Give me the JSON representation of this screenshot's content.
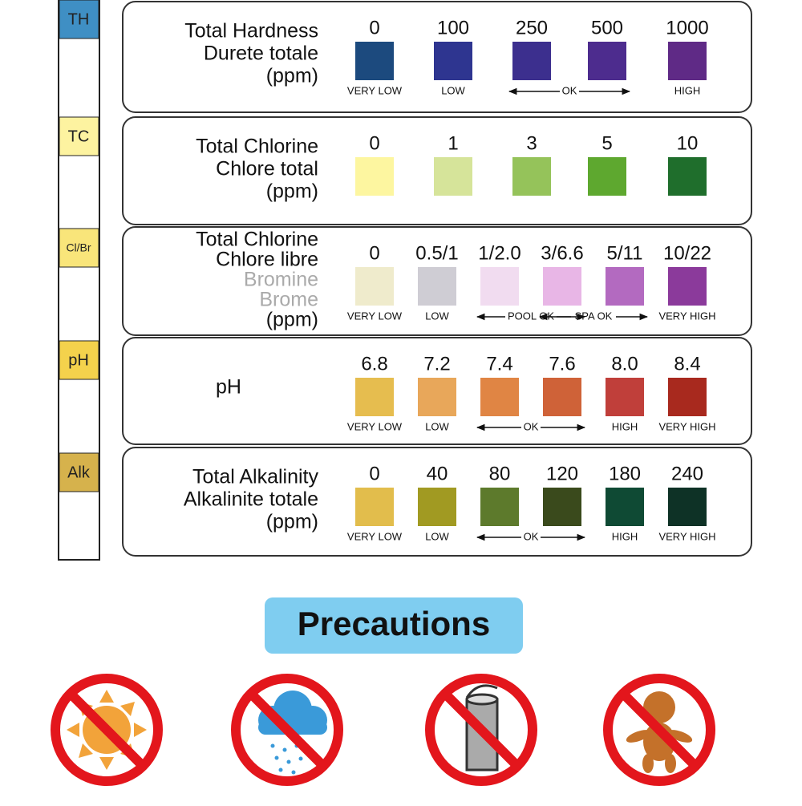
{
  "strip": {
    "labels": [
      {
        "text": "TH",
        "color": "#3f8fc4"
      },
      {
        "text": "TC",
        "color": "#fdf3a0"
      },
      {
        "text": "Cl/Br",
        "color": "#f9e57a"
      },
      {
        "text": "pH",
        "color": "#f4d24c"
      },
      {
        "text": "Alk",
        "color": "#d6b24c"
      }
    ]
  },
  "rows": [
    {
      "label_lines": [
        {
          "text": "Total Hardness"
        },
        {
          "text": "Durete totale"
        },
        {
          "text": "(ppm)"
        }
      ],
      "swatches": [
        {
          "value": "0",
          "color": "#1c4a7e",
          "status": "VERY LOW"
        },
        {
          "value": "100",
          "color": "#2e3590",
          "status": "LOW"
        },
        {
          "value": "250",
          "color": "#3c2f8e"
        },
        {
          "value": "500",
          "color": "#4d2c8e"
        },
        {
          "value": "1000",
          "color": "#5f2a86",
          "status": "HIGH"
        }
      ],
      "ranges": [
        {
          "text": "OK",
          "first": 2,
          "last": 3
        }
      ]
    },
    {
      "label_lines": [
        {
          "text": "Total Chlorine"
        },
        {
          "text": "Chlore total"
        },
        {
          "text": "(ppm)"
        }
      ],
      "swatches": [
        {
          "value": "0",
          "color": "#fdf6a0"
        },
        {
          "value": "1",
          "color": "#d6e49a"
        },
        {
          "value": "3",
          "color": "#95c35a"
        },
        {
          "value": "5",
          "color": "#5ea82f"
        },
        {
          "value": "10",
          "color": "#1f6e2c"
        }
      ],
      "ranges": []
    },
    {
      "label_lines": [
        {
          "text": "Total Chlorine"
        },
        {
          "text": "Chlore libre"
        },
        {
          "text": "Bromine",
          "muted": true
        },
        {
          "text": "Brome",
          "muted": true
        },
        {
          "text": "(ppm)"
        }
      ],
      "swatches": [
        {
          "value": "0",
          "color": "#efebcc",
          "status": "VERY LOW"
        },
        {
          "value": "0.5/1",
          "color": "#cfcdd4",
          "status": "LOW"
        },
        {
          "value": "1/2.0",
          "color": "#f1dcf0"
        },
        {
          "value": "3/6.6",
          "color": "#e8b6e6"
        },
        {
          "value": "5/11",
          "color": "#b36ac0"
        },
        {
          "value": "10/22",
          "color": "#8b3a9b",
          "status": "VERY HIGH"
        }
      ],
      "ranges": [
        {
          "text": "POOL OK",
          "first": 2,
          "last": 3
        },
        {
          "text": "SPA OK",
          "first": 3,
          "last": 4
        }
      ]
    },
    {
      "label_lines": [
        {
          "text": "pH"
        }
      ],
      "label_align": "center",
      "swatches": [
        {
          "value": "6.8",
          "color": "#e6bd4f",
          "status": "VERY LOW"
        },
        {
          "value": "7.2",
          "color": "#e8a75a",
          "status": "LOW"
        },
        {
          "value": "7.4",
          "color": "#e08544"
        },
        {
          "value": "7.6",
          "color": "#cf6238"
        },
        {
          "value": "8.0",
          "color": "#c03f3a",
          "status": "HIGH"
        },
        {
          "value": "8.4",
          "color": "#a8291e",
          "status": "VERY HIGH"
        }
      ],
      "ranges": [
        {
          "text": "OK",
          "first": 2,
          "last": 3
        }
      ]
    },
    {
      "label_lines": [
        {
          "text": "Total Alkalinity"
        },
        {
          "text": "Alkalinite totale"
        },
        {
          "text": "(ppm)"
        }
      ],
      "swatches": [
        {
          "value": "0",
          "color": "#e2bd4c",
          "status": "VERY LOW"
        },
        {
          "value": "40",
          "color": "#a19a22",
          "status": "LOW"
        },
        {
          "value": "80",
          "color": "#5d7a2c"
        },
        {
          "value": "120",
          "color": "#3a4a1c"
        },
        {
          "value": "180",
          "color": "#0f4a34",
          "status": "HIGH"
        },
        {
          "value": "240",
          "color": "#0e3226",
          "status": "VERY HIGH"
        }
      ],
      "ranges": [
        {
          "text": "OK",
          "first": 2,
          "last": 3
        }
      ]
    }
  ],
  "precautions": {
    "title": "Precautions"
  }
}
